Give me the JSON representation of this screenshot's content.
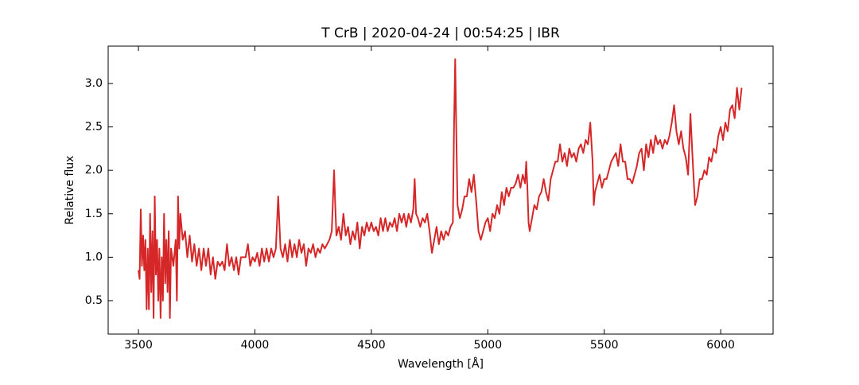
{
  "chart_data": {
    "type": "line",
    "title": "T CrB | 2020-04-24 | 00:54:25 | IBR",
    "xlabel": "Wavelength [Å]",
    "ylabel": "Relative flux",
    "xlim": [
      3370,
      6225
    ],
    "ylim": [
      0.115,
      3.43
    ],
    "xticks": [
      3500,
      4000,
      4500,
      5000,
      5500,
      6000
    ],
    "yticks": [
      {
        "value": 0.5,
        "label": "0.5"
      },
      {
        "value": 1,
        "label": "1.0"
      },
      {
        "value": 1.5,
        "label": "1.5"
      },
      {
        "value": 2,
        "label": "2.0"
      },
      {
        "value": 2.5,
        "label": "2.5"
      },
      {
        "value": 3,
        "label": "3.0"
      }
    ],
    "x": [
      3500,
      3505,
      3510,
      3515,
      3520,
      3525,
      3530,
      3535,
      3540,
      3545,
      3550,
      3555,
      3560,
      3565,
      3570,
      3575,
      3580,
      3585,
      3590,
      3595,
      3600,
      3605,
      3610,
      3615,
      3620,
      3625,
      3630,
      3635,
      3640,
      3650,
      3660,
      3665,
      3670,
      3675,
      3680,
      3690,
      3700,
      3710,
      3720,
      3730,
      3740,
      3750,
      3760,
      3770,
      3780,
      3790,
      3800,
      3810,
      3820,
      3830,
      3840,
      3850,
      3860,
      3870,
      3880,
      3890,
      3900,
      3910,
      3920,
      3930,
      3940,
      3960,
      3970,
      3980,
      3990,
      4000,
      4010,
      4020,
      4030,
      4040,
      4050,
      4060,
      4070,
      4080,
      4090,
      4100,
      4105,
      4110,
      4120,
      4130,
      4140,
      4150,
      4160,
      4170,
      4180,
      4190,
      4200,
      4210,
      4220,
      4230,
      4240,
      4250,
      4260,
      4270,
      4280,
      4290,
      4300,
      4310,
      4320,
      4330,
      4340,
      4345,
      4350,
      4360,
      4370,
      4380,
      4390,
      4400,
      4410,
      4420,
      4430,
      4440,
      4450,
      4460,
      4470,
      4480,
      4490,
      4500,
      4510,
      4520,
      4530,
      4540,
      4550,
      4560,
      4570,
      4580,
      4590,
      4600,
      4610,
      4620,
      4630,
      4640,
      4650,
      4660,
      4670,
      4680,
      4686,
      4692,
      4700,
      4710,
      4720,
      4730,
      4740,
      4750,
      4760,
      4770,
      4780,
      4790,
      4800,
      4810,
      4820,
      4830,
      4840,
      4850,
      4855,
      4860,
      4865,
      4870,
      4880,
      4890,
      4900,
      4910,
      4920,
      4930,
      4940,
      4950,
      4960,
      4970,
      4980,
      4990,
      5000,
      5010,
      5020,
      5030,
      5040,
      5050,
      5060,
      5070,
      5080,
      5090,
      5100,
      5110,
      5120,
      5130,
      5140,
      5150,
      5160,
      5165,
      5170,
      5175,
      5180,
      5190,
      5200,
      5210,
      5220,
      5230,
      5240,
      5250,
      5260,
      5270,
      5280,
      5290,
      5300,
      5310,
      5320,
      5330,
      5340,
      5350,
      5360,
      5370,
      5380,
      5390,
      5400,
      5410,
      5420,
      5430,
      5440,
      5450,
      5455,
      5460,
      5470,
      5480,
      5490,
      5500,
      5510,
      5520,
      5530,
      5540,
      5550,
      5560,
      5570,
      5580,
      5590,
      5600,
      5610,
      5620,
      5630,
      5640,
      5650,
      5660,
      5670,
      5680,
      5690,
      5700,
      5710,
      5720,
      5730,
      5740,
      5750,
      5760,
      5770,
      5780,
      5790,
      5800,
      5810,
      5820,
      5830,
      5840,
      5850,
      5860,
      5870,
      5880,
      5890,
      5900,
      5910,
      5920,
      5930,
      5940,
      5950,
      5960,
      5970,
      5980,
      5990,
      6000,
      6010,
      6020,
      6030,
      6040,
      6050,
      6060,
      6070,
      6080,
      6090
    ],
    "series": [
      {
        "color": "#d62728",
        "values": [
          0.85,
          0.75,
          1.55,
          0.9,
          1.25,
          0.85,
          1.2,
          0.4,
          1.1,
          0.4,
          1.5,
          0.6,
          1.3,
          0.3,
          1.7,
          0.8,
          1.2,
          0.5,
          1.1,
          0.3,
          1.0,
          0.5,
          1.5,
          0.7,
          1.2,
          0.6,
          1.3,
          0.3,
          1.1,
          0.9,
          1.2,
          0.5,
          1.7,
          1.1,
          1.5,
          1.2,
          1.3,
          1.0,
          1.25,
          0.95,
          1.15,
          0.9,
          1.1,
          0.85,
          1.1,
          0.9,
          1.1,
          0.8,
          1.0,
          0.75,
          0.95,
          0.9,
          0.95,
          0.85,
          1.15,
          0.9,
          1.0,
          0.85,
          1.0,
          0.8,
          1.0,
          1.0,
          1.15,
          0.9,
          1.0,
          0.95,
          1.05,
          0.9,
          1.1,
          0.95,
          1.1,
          0.95,
          1.1,
          1.0,
          1.1,
          1.7,
          1.4,
          1.1,
          1.0,
          1.15,
          0.95,
          1.2,
          1.0,
          1.15,
          1.0,
          1.2,
          1.05,
          1.15,
          0.9,
          1.1,
          1.05,
          1.15,
          1.0,
          1.1,
          1.05,
          1.15,
          1.1,
          1.15,
          1.2,
          1.3,
          2.0,
          1.6,
          1.25,
          1.35,
          1.2,
          1.5,
          1.25,
          1.35,
          1.15,
          1.3,
          1.2,
          1.4,
          1.1,
          1.35,
          1.25,
          1.4,
          1.3,
          1.4,
          1.3,
          1.35,
          1.25,
          1.45,
          1.3,
          1.45,
          1.3,
          1.4,
          1.35,
          1.45,
          1.3,
          1.5,
          1.4,
          1.5,
          1.35,
          1.5,
          1.4,
          1.55,
          1.9,
          1.5,
          1.45,
          1.35,
          1.45,
          1.4,
          1.5,
          1.3,
          1.05,
          1.2,
          1.35,
          1.15,
          1.3,
          1.2,
          1.3,
          1.25,
          1.35,
          1.4,
          2.5,
          3.28,
          2.4,
          1.6,
          1.45,
          1.55,
          1.7,
          1.7,
          1.9,
          1.75,
          1.95,
          1.65,
          1.3,
          1.2,
          1.3,
          1.4,
          1.45,
          1.3,
          1.5,
          1.45,
          1.6,
          1.5,
          1.75,
          1.6,
          1.8,
          1.7,
          1.8,
          1.8,
          1.85,
          1.95,
          1.8,
          1.95,
          1.85,
          2.1,
          1.8,
          1.4,
          1.3,
          1.45,
          1.6,
          1.55,
          1.7,
          1.75,
          1.9,
          1.75,
          1.65,
          1.9,
          2.0,
          2.1,
          2.1,
          2.3,
          2.1,
          2.2,
          2.05,
          2.25,
          2.15,
          2.2,
          2.1,
          2.25,
          2.3,
          2.2,
          2.35,
          2.3,
          2.55,
          2.1,
          1.6,
          1.75,
          1.85,
          1.95,
          1.8,
          1.9,
          1.9,
          2.0,
          2.1,
          2.15,
          2.2,
          2.05,
          2.3,
          2.1,
          2.1,
          1.9,
          1.9,
          1.85,
          1.95,
          2.05,
          2.2,
          2.25,
          2.0,
          2.3,
          2.15,
          2.35,
          2.2,
          2.4,
          2.3,
          2.35,
          2.25,
          2.35,
          2.3,
          2.4,
          2.55,
          2.75,
          2.45,
          2.3,
          2.45,
          2.25,
          2.15,
          1.95,
          2.65,
          2.1,
          1.6,
          1.7,
          1.9,
          1.9,
          2.0,
          1.95,
          2.15,
          2.1,
          2.25,
          2.2,
          2.4,
          2.5,
          2.35,
          2.55,
          2.45,
          2.7,
          2.75,
          2.6,
          2.95,
          2.7,
          2.95
        ]
      }
    ]
  }
}
